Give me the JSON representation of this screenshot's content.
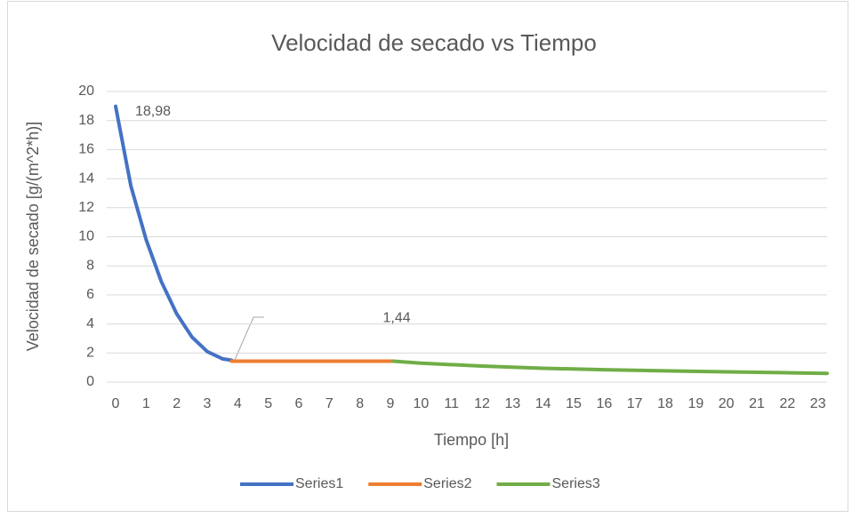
{
  "chart_data": {
    "type": "line",
    "title": "Velocidad de secado vs Tiempo",
    "x_label": "Tiempo [h]",
    "y_label": "Velocidad de secado [g/(m^2*h)]",
    "series": [
      {
        "name": "Series1",
        "color": "#4472c4",
        "x": [
          0,
          0.5,
          1,
          1.5,
          2,
          2.5,
          3,
          3.5,
          3.8
        ],
        "values": [
          18.98,
          13.5,
          9.8,
          6.9,
          4.7,
          3.1,
          2.1,
          1.6,
          1.5
        ],
        "value_labels": [
          "18,98",
          null,
          null,
          null,
          null,
          null,
          null,
          null,
          null
        ]
      },
      {
        "name": "Series2",
        "color": "#ed7d31",
        "x": [
          3.8,
          9.1
        ],
        "values": [
          1.44,
          1.44
        ],
        "value_labels": [
          "1,44",
          null
        ]
      },
      {
        "name": "Series3",
        "color": "#70ad47",
        "x": [
          9.1,
          10,
          12,
          14,
          16,
          18,
          20,
          22,
          23.3
        ],
        "values": [
          1.44,
          1.3,
          1.1,
          0.95,
          0.85,
          0.77,
          0.7,
          0.64,
          0.6
        ]
      }
    ],
    "xlim": [
      0,
      23.3
    ],
    "xticks": [
      0,
      1,
      2,
      3,
      4,
      5,
      6,
      7,
      8,
      9,
      10,
      11,
      12,
      13,
      14,
      15,
      16,
      17,
      18,
      19,
      20,
      21,
      22,
      23
    ],
    "ylim": [
      0,
      20
    ],
    "yticks": [
      0,
      2,
      4,
      6,
      8,
      10,
      12,
      14,
      16,
      18,
      20
    ],
    "grid": true,
    "legend": "bottom"
  }
}
